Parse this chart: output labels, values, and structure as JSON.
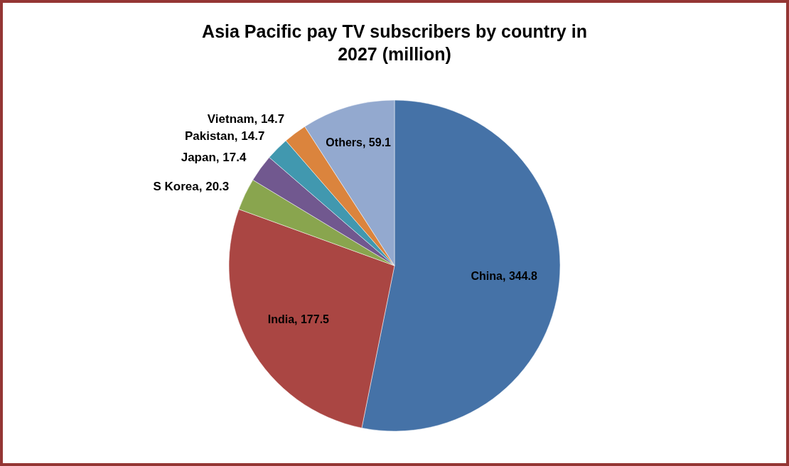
{
  "chart_data": {
    "type": "pie",
    "title": "Asia Pacific pay TV subscribers by country in 2027 (million)",
    "categories": [
      "China",
      "India",
      "S Korea",
      "Japan",
      "Pakistan",
      "Vietnam",
      "Others"
    ],
    "values": [
      344.8,
      177.5,
      20.3,
      17.4,
      14.7,
      14.7,
      59.1
    ],
    "colors": [
      "#4572a7",
      "#aa4643",
      "#89a54e",
      "#71588f",
      "#4198af",
      "#db843d",
      "#93a9cf"
    ],
    "value_labels": [
      ", 344.8",
      ", 177.5",
      ", 20.3",
      ", 17.4",
      ", 14.7",
      ", 14.7",
      ", 59.1"
    ],
    "legend": false
  }
}
